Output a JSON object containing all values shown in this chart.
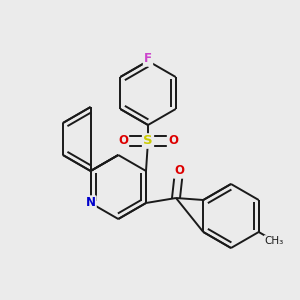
{
  "bg_color": "#ebebeb",
  "bond_color": "#1a1a1a",
  "bond_width": 1.4,
  "atom_colors": {
    "F": "#cc44cc",
    "S": "#cccc00",
    "O": "#dd0000",
    "N": "#0000cc",
    "C": "#1a1a1a"
  },
  "font_size_atom": 8.5,
  "double_sep": 0.12
}
